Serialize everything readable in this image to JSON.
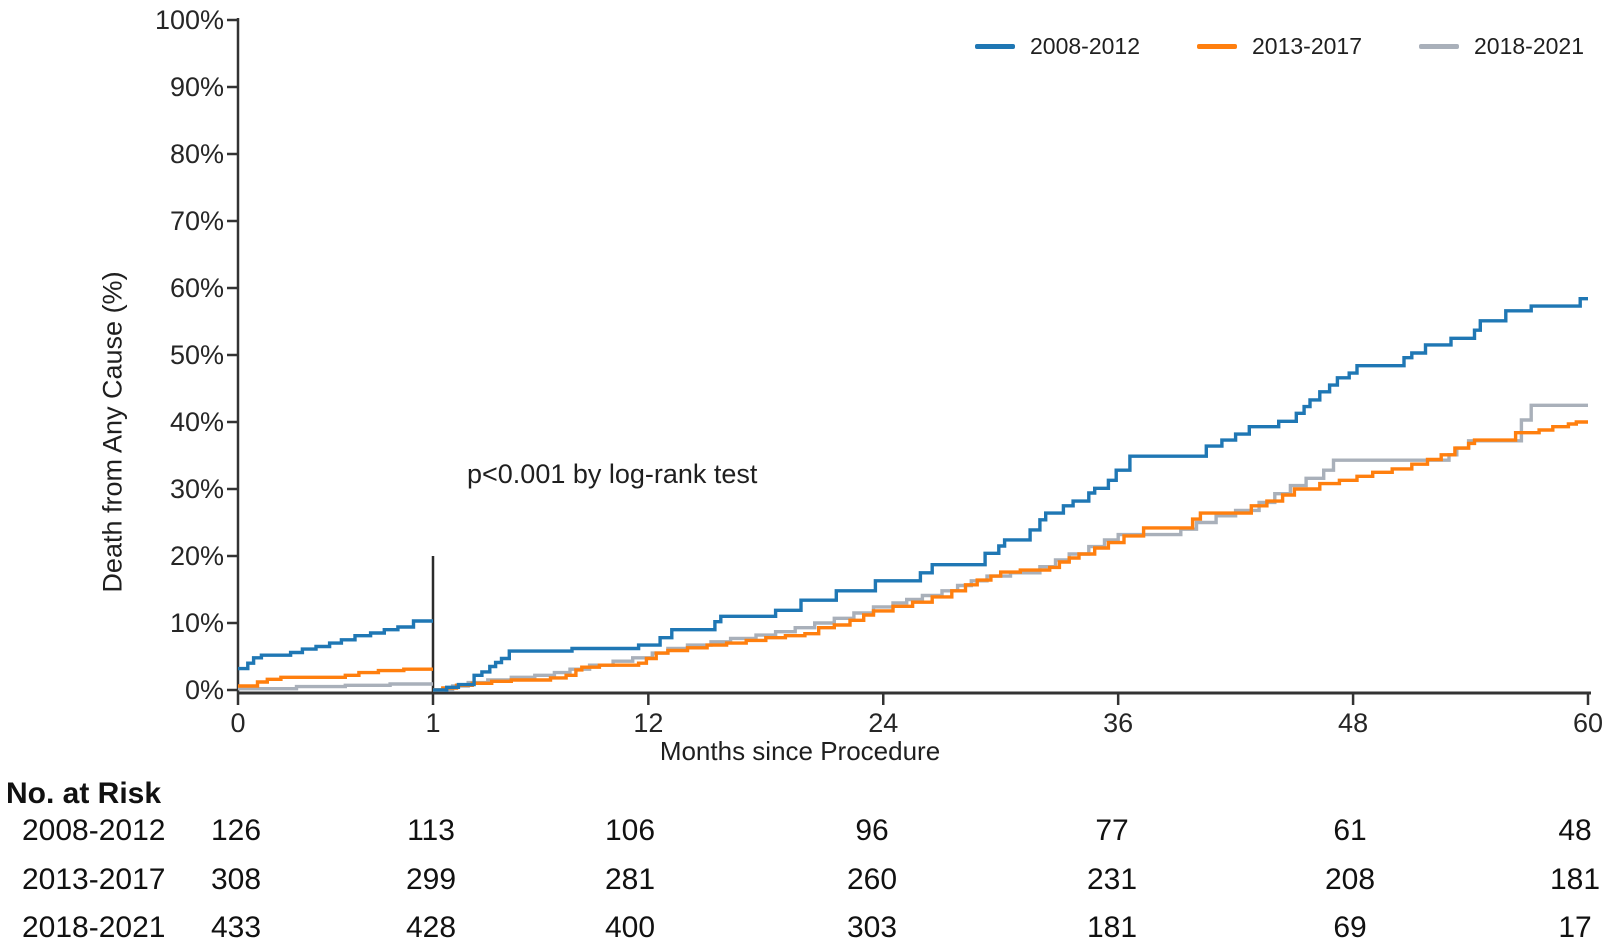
{
  "chart_data": {
    "type": "line",
    "subtype": "kaplan-meier-step",
    "title": "",
    "xlabel": "Months since Procedure",
    "ylabel": "Death from Any Cause (%)",
    "annotation": "p<0.001 by log-rank test",
    "x_axis": {
      "tick_values": [
        0,
        1,
        12,
        24,
        36,
        48,
        60
      ],
      "tick_labels": [
        "0",
        "1",
        "12",
        "24",
        "36",
        "48",
        "60"
      ],
      "axis_break_at_month": 1,
      "break_line_top_percent": 20,
      "range": [
        0,
        60
      ]
    },
    "y_axis": {
      "tick_values": [
        0,
        10,
        20,
        30,
        40,
        50,
        60,
        70,
        80,
        90,
        100
      ],
      "tick_suffix": "%",
      "range": [
        0,
        100
      ]
    },
    "legend_position": "top-right",
    "grid": false,
    "series": [
      {
        "name": "2008-2012",
        "color": "#1f77b4",
        "early_segment_months_0_to_1": [
          [
            0,
            3.2
          ],
          [
            0.05,
            4
          ],
          [
            0.08,
            4.8
          ],
          [
            0.12,
            5.2
          ],
          [
            0.27,
            5.6
          ],
          [
            0.33,
            6.1
          ],
          [
            0.4,
            6.5
          ],
          [
            0.47,
            7
          ],
          [
            0.53,
            7.5
          ],
          [
            0.6,
            8.1
          ],
          [
            0.68,
            8.5
          ],
          [
            0.75,
            9
          ],
          [
            0.82,
            9.4
          ],
          [
            0.9,
            10.3
          ],
          [
            1,
            10.3
          ]
        ],
        "late_segment_months_1_to_60": [
          [
            1,
            0
          ],
          [
            1.7,
            0.4
          ],
          [
            2.3,
            0.8
          ],
          [
            3.1,
            2.2
          ],
          [
            3.5,
            2.7
          ],
          [
            3.9,
            3.5
          ],
          [
            4.2,
            4.1
          ],
          [
            4.5,
            4.7
          ],
          [
            4.9,
            5.8
          ],
          [
            8.1,
            6.2
          ],
          [
            11.5,
            6.7
          ],
          [
            12.6,
            7.8
          ],
          [
            13.2,
            9
          ],
          [
            15.4,
            10.2
          ],
          [
            15.7,
            11
          ],
          [
            18.5,
            11.9
          ],
          [
            19.8,
            13.4
          ],
          [
            21.6,
            14.8
          ],
          [
            23.6,
            16.3
          ],
          [
            25.9,
            17.5
          ],
          [
            26.5,
            18.7
          ],
          [
            29.2,
            20.4
          ],
          [
            29.9,
            21.5
          ],
          [
            30.2,
            22.4
          ],
          [
            31.5,
            23.9
          ],
          [
            32,
            25.4
          ],
          [
            32.3,
            26.4
          ],
          [
            33.2,
            27.5
          ],
          [
            33.7,
            28.2
          ],
          [
            34.5,
            29.4
          ],
          [
            34.8,
            30.1
          ],
          [
            35.5,
            31.3
          ],
          [
            35.9,
            32.8
          ],
          [
            36.6,
            34.9
          ],
          [
            40.5,
            36.4
          ],
          [
            41.3,
            37.3
          ],
          [
            42,
            38.2
          ],
          [
            42.7,
            39.3
          ],
          [
            44.2,
            40.1
          ],
          [
            45.1,
            41.3
          ],
          [
            45.5,
            42.3
          ],
          [
            45.8,
            43.3
          ],
          [
            46.3,
            44.5
          ],
          [
            46.8,
            45.5
          ],
          [
            47.2,
            46.6
          ],
          [
            47.8,
            47.3
          ],
          [
            48.2,
            48.4
          ],
          [
            50.6,
            49.6
          ],
          [
            51,
            50.3
          ],
          [
            51.7,
            51.5
          ],
          [
            53,
            52.5
          ],
          [
            54.2,
            53.7
          ],
          [
            54.5,
            55.1
          ],
          [
            55.8,
            56.6
          ],
          [
            57.1,
            57.3
          ],
          [
            59.6,
            58.4
          ],
          [
            60,
            58.4
          ]
        ]
      },
      {
        "name": "2013-2017",
        "color": "#ff7f0e",
        "early_segment_months_0_to_1": [
          [
            0,
            0.6
          ],
          [
            0.1,
            1.2
          ],
          [
            0.15,
            1.6
          ],
          [
            0.22,
            1.9
          ],
          [
            0.55,
            2.2
          ],
          [
            0.62,
            2.6
          ],
          [
            0.72,
            2.9
          ],
          [
            0.85,
            3.1
          ],
          [
            1,
            3.1
          ]
        ],
        "late_segment_months_1_to_60": [
          [
            1,
            0
          ],
          [
            1.5,
            0.3
          ],
          [
            2.2,
            0.7
          ],
          [
            3,
            1
          ],
          [
            4,
            1.3
          ],
          [
            5,
            1.5
          ],
          [
            7,
            1.8
          ],
          [
            7.8,
            2.2
          ],
          [
            8.3,
            3
          ],
          [
            8.6,
            3.4
          ],
          [
            9.5,
            3.7
          ],
          [
            11.5,
            4
          ],
          [
            11.9,
            4.7
          ],
          [
            12.4,
            5.5
          ],
          [
            13,
            5.9
          ],
          [
            14,
            6.3
          ],
          [
            15,
            6.7
          ],
          [
            16,
            7
          ],
          [
            17,
            7.4
          ],
          [
            18,
            7.8
          ],
          [
            19,
            8.1
          ],
          [
            20,
            8.4
          ],
          [
            20.7,
            9.3
          ],
          [
            21.5,
            9.7
          ],
          [
            22.3,
            10.4
          ],
          [
            23,
            11.2
          ],
          [
            23.5,
            11.8
          ],
          [
            24.5,
            12.5
          ],
          [
            25.5,
            13.1
          ],
          [
            26.5,
            13.9
          ],
          [
            27.5,
            14.8
          ],
          [
            28.2,
            15.7
          ],
          [
            28.8,
            16.4
          ],
          [
            29.5,
            17
          ],
          [
            30,
            17.6
          ],
          [
            31,
            17.9
          ],
          [
            32.5,
            18.3
          ],
          [
            33,
            19.1
          ],
          [
            33.5,
            19.7
          ],
          [
            34,
            20.3
          ],
          [
            34.8,
            21.2
          ],
          [
            35.5,
            22
          ],
          [
            36.3,
            23
          ],
          [
            37.3,
            24.2
          ],
          [
            39.8,
            25.5
          ],
          [
            40.2,
            26.4
          ],
          [
            42.8,
            27.5
          ],
          [
            43.6,
            28.2
          ],
          [
            44.4,
            29.1
          ],
          [
            45,
            30
          ],
          [
            46.3,
            30.8
          ],
          [
            47.3,
            31.3
          ],
          [
            48.2,
            31.9
          ],
          [
            49,
            32.5
          ],
          [
            50,
            33
          ],
          [
            51,
            33.7
          ],
          [
            51.8,
            34.4
          ],
          [
            52.5,
            35.1
          ],
          [
            53.2,
            36.1
          ],
          [
            53.9,
            36.8
          ],
          [
            54.2,
            37.3
          ],
          [
            56.3,
            38.4
          ],
          [
            57.5,
            38.8
          ],
          [
            58.2,
            39.3
          ],
          [
            59,
            39.7
          ],
          [
            59.4,
            40
          ],
          [
            60,
            40
          ]
        ]
      },
      {
        "name": "2018-2021",
        "color": "#a9b0ba",
        "early_segment_months_0_to_1": [
          [
            0,
            0.2
          ],
          [
            0.3,
            0.5
          ],
          [
            0.55,
            0.7
          ],
          [
            0.78,
            0.9
          ],
          [
            1,
            0.9
          ]
        ],
        "late_segment_months_1_to_60": [
          [
            1,
            0
          ],
          [
            2,
            0.6
          ],
          [
            2.8,
            1.1
          ],
          [
            3.8,
            1.5
          ],
          [
            5,
            1.9
          ],
          [
            6.2,
            2.2
          ],
          [
            7.2,
            2.6
          ],
          [
            8,
            3.1
          ],
          [
            9,
            3.7
          ],
          [
            10.2,
            4.3
          ],
          [
            11.2,
            4.8
          ],
          [
            12.2,
            5.5
          ],
          [
            13,
            6.2
          ],
          [
            14,
            6.7
          ],
          [
            15.2,
            7.2
          ],
          [
            16.2,
            7.7
          ],
          [
            17.5,
            8.2
          ],
          [
            18.5,
            8.7
          ],
          [
            19.5,
            9.3
          ],
          [
            20.5,
            10
          ],
          [
            21.5,
            10.7
          ],
          [
            22.5,
            11.5
          ],
          [
            23.5,
            12.4
          ],
          [
            24.5,
            13
          ],
          [
            25.2,
            13.5
          ],
          [
            26,
            14.1
          ],
          [
            27,
            14.8
          ],
          [
            27.8,
            15.6
          ],
          [
            28.5,
            16.3
          ],
          [
            29.3,
            17
          ],
          [
            30.5,
            17.5
          ],
          [
            32,
            18.4
          ],
          [
            32.8,
            19.4
          ],
          [
            33.5,
            20.3
          ],
          [
            34.5,
            21.4
          ],
          [
            35.3,
            22.4
          ],
          [
            36,
            23.2
          ],
          [
            39.2,
            24
          ],
          [
            40,
            25
          ],
          [
            41,
            26
          ],
          [
            42,
            26.8
          ],
          [
            43.2,
            28
          ],
          [
            44,
            29.3
          ],
          [
            44.8,
            30.5
          ],
          [
            45.6,
            31.6
          ],
          [
            46.5,
            32.8
          ],
          [
            47,
            34.3
          ],
          [
            52.6,
            34.3
          ],
          [
            52.9,
            35.1
          ],
          [
            53.3,
            36.1
          ],
          [
            53.9,
            37.2
          ],
          [
            56.6,
            40.3
          ],
          [
            57.1,
            42.5
          ],
          [
            60,
            42.5
          ]
        ]
      }
    ],
    "risk_table": {
      "header": "No. at Risk",
      "time_points_months": [
        0,
        1,
        12,
        24,
        36,
        48,
        60
      ],
      "rows": [
        {
          "label": "2008-2012",
          "values": [
            "126",
            "113",
            "106",
            "96",
            "77",
            "61",
            "48"
          ]
        },
        {
          "label": "2013-2017",
          "values": [
            "308",
            "299",
            "281",
            "260",
            "231",
            "208",
            "181"
          ]
        },
        {
          "label": "2018-2021",
          "values": [
            "433",
            "428",
            "400",
            "303",
            "181",
            "69",
            "17"
          ]
        }
      ]
    }
  },
  "colors": {
    "series_2008_2012": "#1f77b4",
    "series_2013_2017": "#ff7f0e",
    "series_2018_2021": "#a9b0ba",
    "axis": "#333333",
    "text": "#1f1f1f"
  }
}
